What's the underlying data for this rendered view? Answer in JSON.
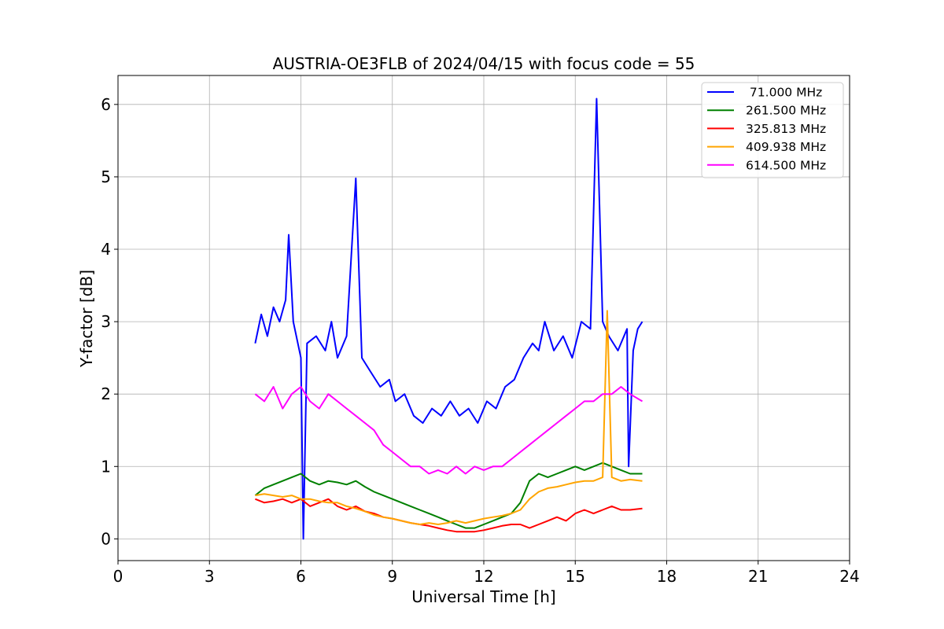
{
  "chart_data": {
    "type": "line",
    "title": "AUSTRIA-OE3FLB of 2024/04/15 with focus code = 55",
    "xlabel": "Universal Time [h]",
    "ylabel": "Y-factor [dB]",
    "xlim": [
      0,
      24
    ],
    "ylim": [
      -0.3,
      6.4
    ],
    "xticks": [
      0,
      3,
      6,
      9,
      12,
      15,
      18,
      21,
      24
    ],
    "yticks": [
      0,
      1,
      2,
      3,
      4,
      5,
      6
    ],
    "grid": true,
    "legend_position": "top-right",
    "series": [
      {
        "name": " 71.000 MHz",
        "color": "#0000ff",
        "x": [
          4.5,
          4.7,
          4.9,
          5.1,
          5.3,
          5.5,
          5.6,
          5.75,
          6.0,
          6.08,
          6.2,
          6.5,
          6.8,
          7.0,
          7.2,
          7.5,
          7.8,
          8.0,
          8.3,
          8.6,
          8.9,
          9.1,
          9.4,
          9.7,
          10.0,
          10.3,
          10.6,
          10.9,
          11.2,
          11.5,
          11.8,
          12.1,
          12.4,
          12.7,
          13.0,
          13.3,
          13.6,
          13.8,
          14.0,
          14.3,
          14.6,
          14.9,
          15.2,
          15.5,
          15.7,
          15.9,
          16.1,
          16.4,
          16.7,
          16.75,
          16.9,
          17.05,
          17.2
        ],
        "y": [
          2.7,
          3.1,
          2.8,
          3.2,
          3.0,
          3.3,
          4.2,
          3.0,
          2.5,
          0.0,
          2.7,
          2.8,
          2.6,
          3.0,
          2.5,
          2.8,
          4.98,
          2.5,
          2.3,
          2.1,
          2.2,
          1.9,
          2.0,
          1.7,
          1.6,
          1.8,
          1.7,
          1.9,
          1.7,
          1.8,
          1.6,
          1.9,
          1.8,
          2.1,
          2.2,
          2.5,
          2.7,
          2.6,
          3.0,
          2.6,
          2.8,
          2.5,
          3.0,
          2.9,
          6.08,
          3.0,
          2.8,
          2.6,
          2.9,
          1.0,
          2.6,
          2.9,
          3.0
        ]
      },
      {
        "name": "261.500 MHz",
        "color": "#008000",
        "x": [
          4.5,
          4.8,
          5.1,
          5.4,
          5.7,
          6.0,
          6.3,
          6.6,
          6.9,
          7.2,
          7.5,
          7.8,
          8.1,
          8.4,
          8.7,
          9.0,
          9.3,
          9.6,
          9.9,
          10.2,
          10.5,
          10.8,
          11.1,
          11.4,
          11.7,
          12.0,
          12.3,
          12.6,
          12.9,
          13.2,
          13.5,
          13.8,
          14.1,
          14.4,
          14.7,
          15.0,
          15.3,
          15.6,
          15.9,
          16.2,
          16.5,
          16.8,
          17.2
        ],
        "y": [
          0.6,
          0.7,
          0.75,
          0.8,
          0.85,
          0.9,
          0.8,
          0.75,
          0.8,
          0.78,
          0.75,
          0.8,
          0.72,
          0.65,
          0.6,
          0.55,
          0.5,
          0.45,
          0.4,
          0.35,
          0.3,
          0.25,
          0.2,
          0.15,
          0.15,
          0.2,
          0.25,
          0.3,
          0.35,
          0.5,
          0.8,
          0.9,
          0.85,
          0.9,
          0.95,
          1.0,
          0.95,
          1.0,
          1.05,
          1.0,
          0.95,
          0.9,
          0.9
        ]
      },
      {
        "name": "325.813 MHz",
        "color": "#ff0000",
        "x": [
          4.5,
          4.8,
          5.1,
          5.4,
          5.7,
          6.0,
          6.3,
          6.6,
          6.9,
          7.2,
          7.5,
          7.8,
          8.1,
          8.4,
          8.7,
          9.0,
          9.3,
          9.6,
          9.9,
          10.2,
          10.5,
          10.8,
          11.1,
          11.4,
          11.7,
          12.0,
          12.3,
          12.6,
          12.9,
          13.2,
          13.5,
          13.8,
          14.1,
          14.4,
          14.7,
          15.0,
          15.3,
          15.6,
          15.9,
          16.2,
          16.5,
          16.8,
          17.2
        ],
        "y": [
          0.55,
          0.5,
          0.52,
          0.55,
          0.5,
          0.55,
          0.45,
          0.5,
          0.55,
          0.45,
          0.4,
          0.45,
          0.38,
          0.35,
          0.3,
          0.28,
          0.25,
          0.22,
          0.2,
          0.18,
          0.15,
          0.12,
          0.1,
          0.1,
          0.1,
          0.12,
          0.15,
          0.18,
          0.2,
          0.2,
          0.15,
          0.2,
          0.25,
          0.3,
          0.25,
          0.35,
          0.4,
          0.35,
          0.4,
          0.45,
          0.4,
          0.4,
          0.42
        ]
      },
      {
        "name": "409.938 MHz",
        "color": "#ffa500",
        "x": [
          4.5,
          4.8,
          5.1,
          5.4,
          5.7,
          6.0,
          6.3,
          6.6,
          6.9,
          7.2,
          7.5,
          7.8,
          8.1,
          8.4,
          8.7,
          9.0,
          9.3,
          9.6,
          9.9,
          10.2,
          10.5,
          10.8,
          11.1,
          11.4,
          11.7,
          12.0,
          12.3,
          12.6,
          12.9,
          13.2,
          13.5,
          13.8,
          14.1,
          14.4,
          14.7,
          15.0,
          15.3,
          15.6,
          15.9,
          16.05,
          16.2,
          16.5,
          16.8,
          17.2
        ],
        "y": [
          0.6,
          0.62,
          0.6,
          0.58,
          0.6,
          0.55,
          0.55,
          0.52,
          0.5,
          0.5,
          0.45,
          0.42,
          0.38,
          0.33,
          0.3,
          0.28,
          0.25,
          0.22,
          0.2,
          0.22,
          0.2,
          0.22,
          0.25,
          0.22,
          0.25,
          0.28,
          0.3,
          0.32,
          0.35,
          0.4,
          0.55,
          0.65,
          0.7,
          0.72,
          0.75,
          0.78,
          0.8,
          0.8,
          0.85,
          3.15,
          0.85,
          0.8,
          0.82,
          0.8
        ]
      },
      {
        "name": "614.500 MHz",
        "color": "#ff00ff",
        "x": [
          4.5,
          4.8,
          5.1,
          5.4,
          5.7,
          6.0,
          6.3,
          6.6,
          6.9,
          7.2,
          7.5,
          7.8,
          8.1,
          8.4,
          8.7,
          9.0,
          9.3,
          9.6,
          9.9,
          10.2,
          10.5,
          10.8,
          11.1,
          11.4,
          11.7,
          12.0,
          12.3,
          12.6,
          12.9,
          13.2,
          13.5,
          13.8,
          14.1,
          14.4,
          14.7,
          15.0,
          15.3,
          15.6,
          15.9,
          16.2,
          16.5,
          16.8,
          17.2
        ],
        "y": [
          2.0,
          1.9,
          2.1,
          1.8,
          2.0,
          2.1,
          1.9,
          1.8,
          2.0,
          1.9,
          1.8,
          1.7,
          1.6,
          1.5,
          1.3,
          1.2,
          1.1,
          1.0,
          1.0,
          0.9,
          0.95,
          0.9,
          1.0,
          0.9,
          1.0,
          0.95,
          1.0,
          1.0,
          1.1,
          1.2,
          1.3,
          1.4,
          1.5,
          1.6,
          1.7,
          1.8,
          1.9,
          1.9,
          2.0,
          2.0,
          2.1,
          2.0,
          1.9
        ]
      }
    ]
  }
}
